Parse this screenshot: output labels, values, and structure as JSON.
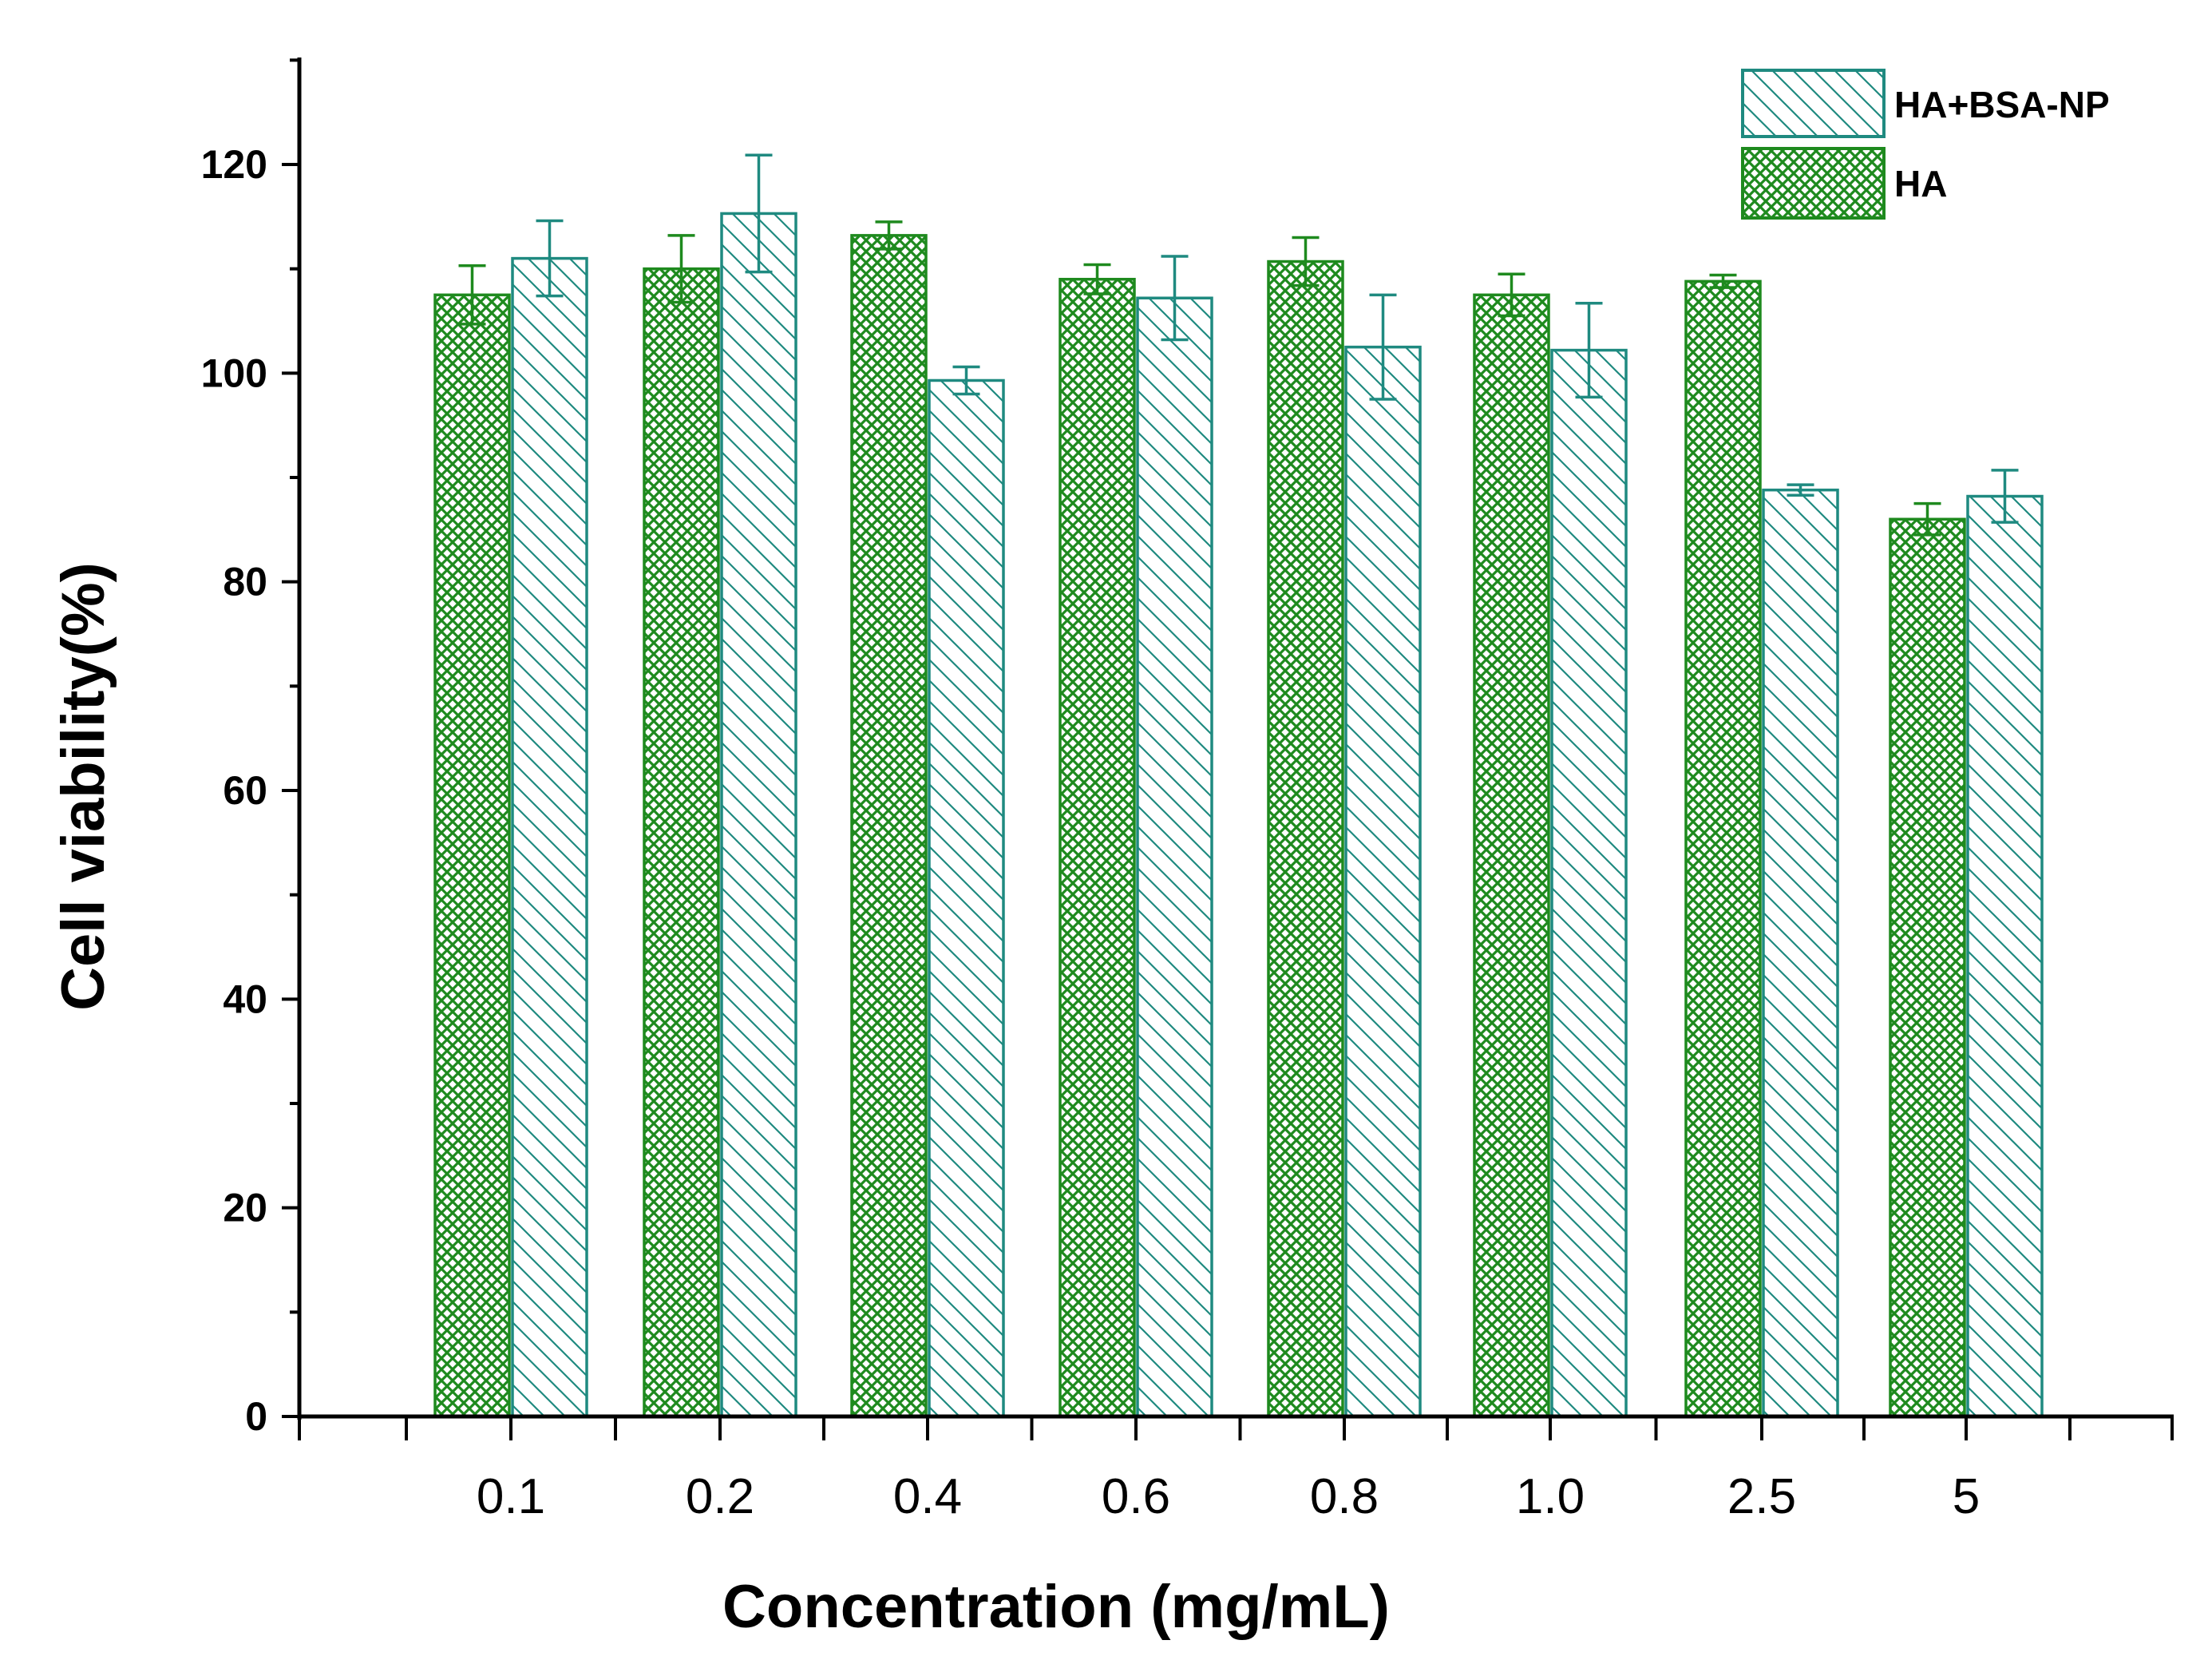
{
  "chart_data": {
    "type": "bar",
    "xlabel": "Concentration (mg/mL)",
    "ylabel": "Cell viability(%)",
    "ylim": [
      0,
      130
    ],
    "yticks": [
      0,
      20,
      40,
      60,
      80,
      100,
      120
    ],
    "categories": [
      "0.1",
      "0.2",
      "0.4",
      "0.6",
      "0.8",
      "1.0",
      "2.5",
      "5"
    ],
    "legend_position": "top-right",
    "series": [
      {
        "name": "HA",
        "pattern": "crosshatch",
        "color": "#1e8a1e",
        "values": [
          107.5,
          110,
          113.2,
          109,
          110.7,
          107.5,
          108.8,
          86
        ],
        "errors": [
          2.8,
          3.2,
          1.3,
          1.4,
          2.3,
          2,
          0.6,
          1.5
        ]
      },
      {
        "name": "HA+BSA-NP",
        "pattern": "diagonal",
        "color": "#1f8a80",
        "values": [
          111,
          115.3,
          99.3,
          107.2,
          102.5,
          102.2,
          88.8,
          88.2
        ],
        "errors": [
          3.6,
          5.6,
          1.3,
          4,
          5,
          4.5,
          0.5,
          2.5
        ]
      }
    ]
  }
}
